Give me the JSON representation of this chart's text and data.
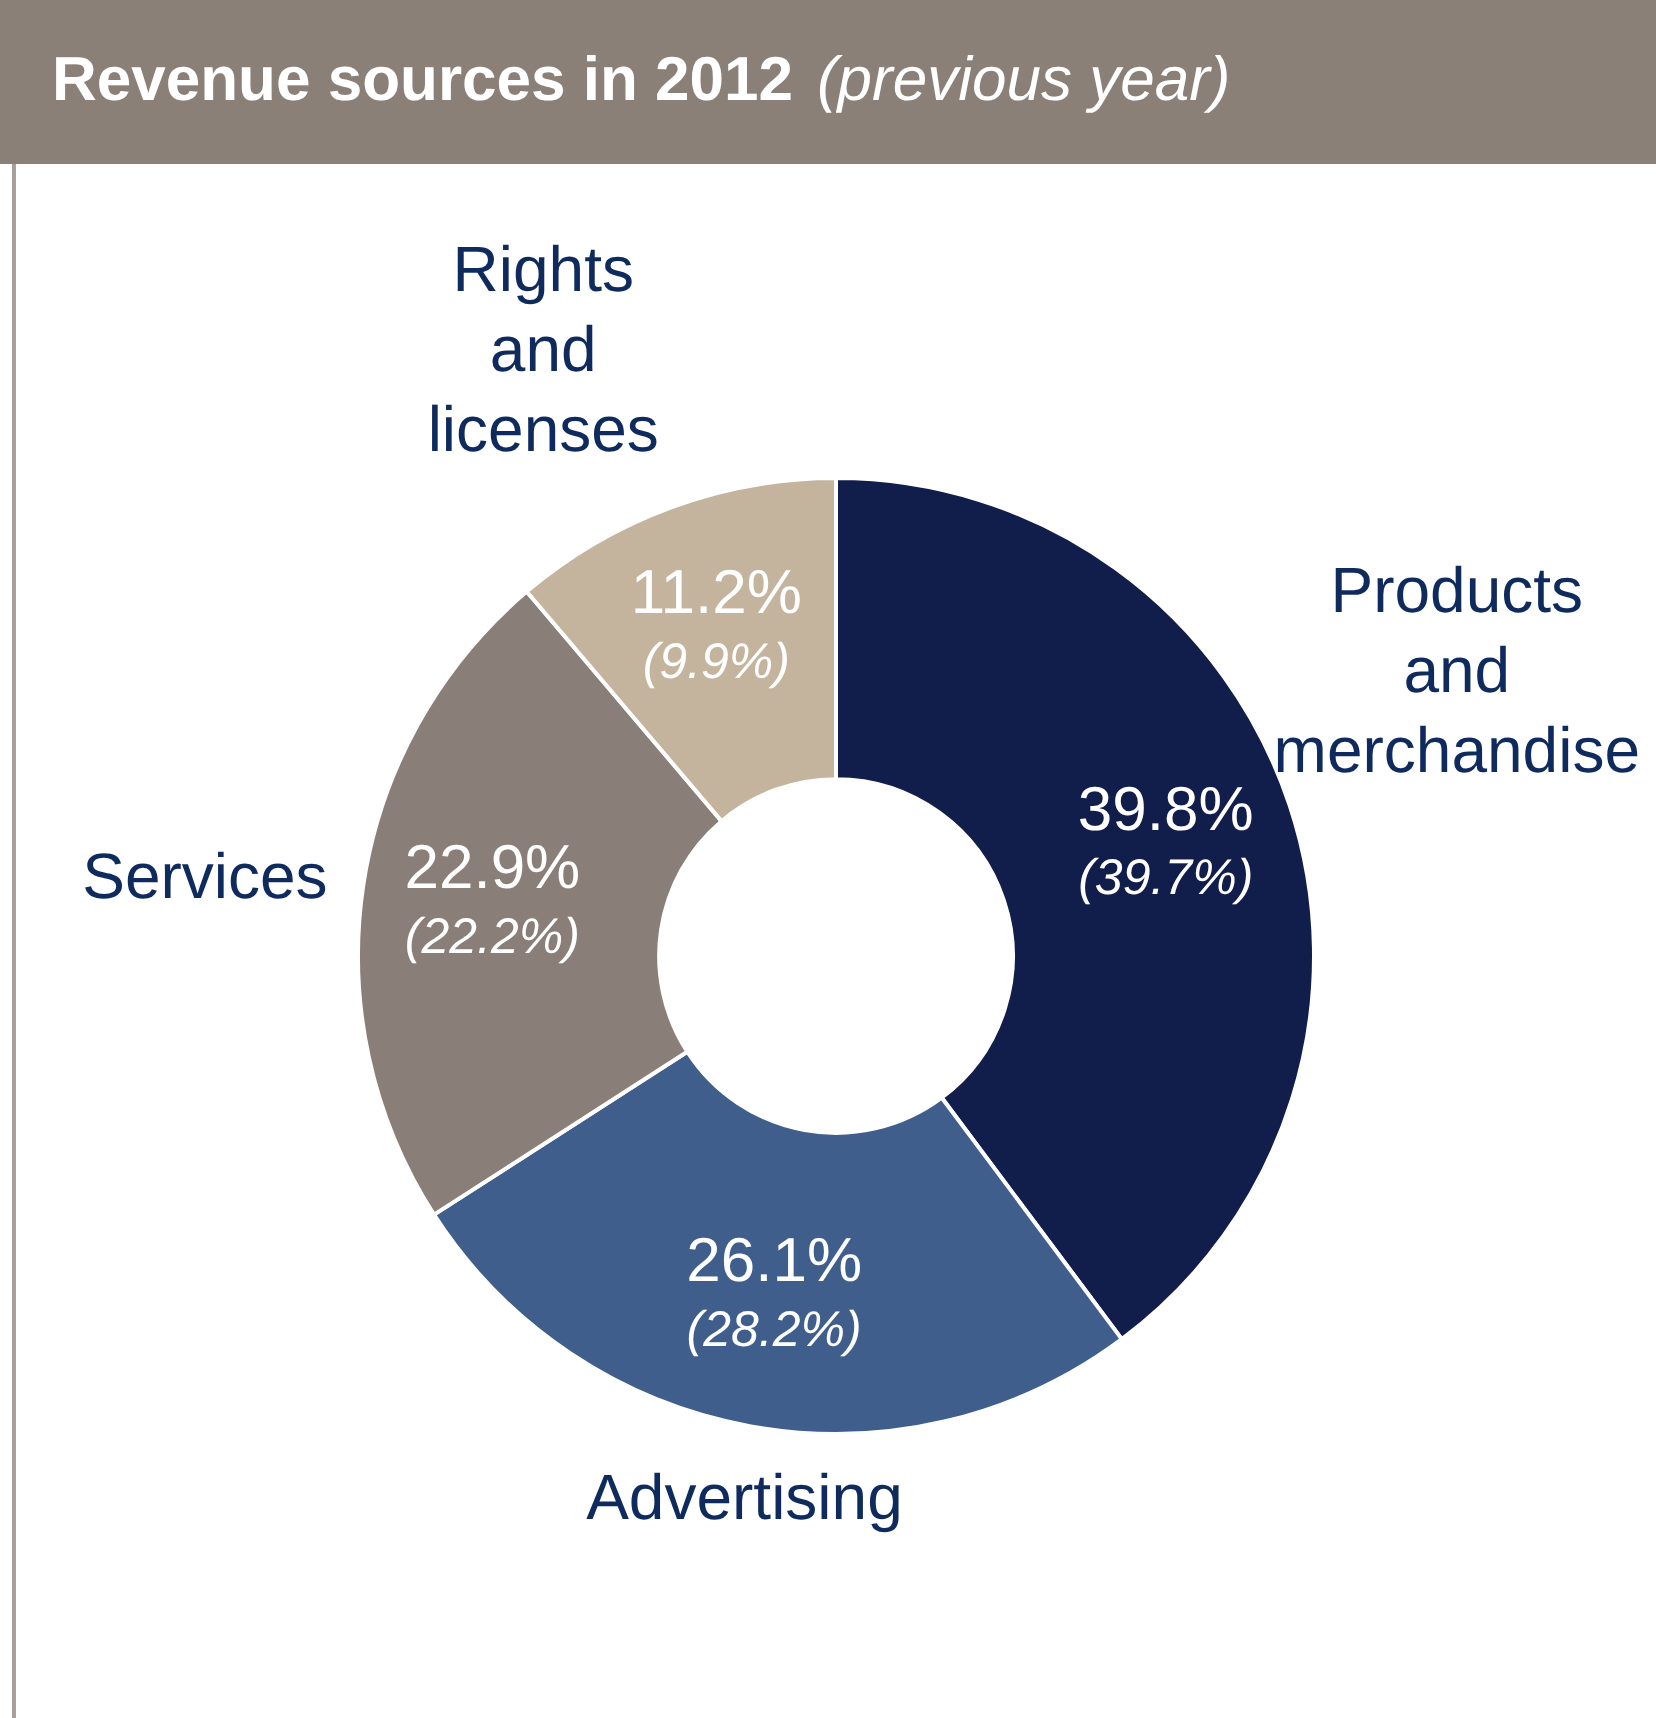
{
  "chart_data": {
    "type": "donut",
    "title": "Revenue sources in 2012",
    "subtitle": "(previous year)",
    "categories": [
      "Products and merchandise",
      "Advertising",
      "Services",
      "Rights and licenses"
    ],
    "values": [
      39.8,
      26.1,
      22.9,
      11.2
    ],
    "colors": [
      "#111d4a",
      "#3f5e8c",
      "#8a7f78",
      "#c4b49e"
    ],
    "value_labels": [
      "39.8%\n(39.7%)",
      "26.1%\n(28.2%)",
      "22.9%\n(22.2%)",
      "11.2%\n(9.9%)"
    ],
    "legend": false
  }
}
